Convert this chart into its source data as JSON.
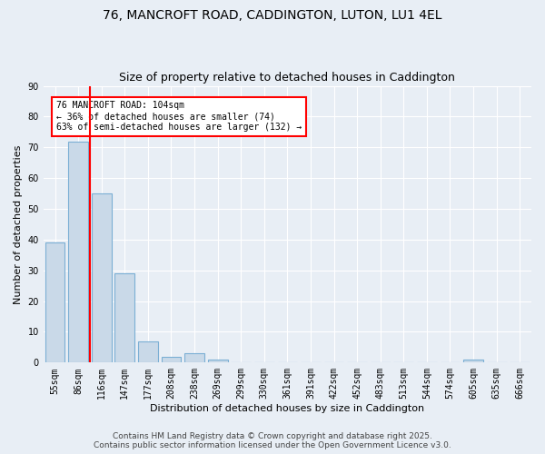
{
  "title1": "76, MANCROFT ROAD, CADDINGTON, LUTON, LU1 4EL",
  "title2": "Size of property relative to detached houses in Caddington",
  "xlabel": "Distribution of detached houses by size in Caddington",
  "ylabel": "Number of detached properties",
  "categories": [
    "55sqm",
    "86sqm",
    "116sqm",
    "147sqm",
    "177sqm",
    "208sqm",
    "238sqm",
    "269sqm",
    "299sqm",
    "330sqm",
    "361sqm",
    "391sqm",
    "422sqm",
    "452sqm",
    "483sqm",
    "513sqm",
    "544sqm",
    "574sqm",
    "605sqm",
    "635sqm",
    "666sqm"
  ],
  "values": [
    39,
    72,
    55,
    29,
    7,
    2,
    3,
    1,
    0,
    0,
    0,
    0,
    0,
    0,
    0,
    0,
    0,
    0,
    1,
    0,
    0
  ],
  "bar_color": "#c9d9e8",
  "bar_edge_color": "#7bafd4",
  "vline_x": 1.5,
  "vline_color": "red",
  "annotation_text": "76 MANCROFT ROAD: 104sqm\n← 36% of detached houses are smaller (74)\n63% of semi-detached houses are larger (132) →",
  "annotation_box_color": "white",
  "annotation_box_edge": "red",
  "ylim": [
    0,
    90
  ],
  "yticks": [
    0,
    10,
    20,
    30,
    40,
    50,
    60,
    70,
    80,
    90
  ],
  "footer": "Contains HM Land Registry data © Crown copyright and database right 2025.\nContains public sector information licensed under the Open Government Licence v3.0.",
  "bg_color": "#e8eef5",
  "plot_bg_color": "#e8eef5",
  "grid_color": "white",
  "title_fontsize": 10,
  "subtitle_fontsize": 9,
  "axis_label_fontsize": 8,
  "tick_fontsize": 7,
  "footer_fontsize": 6.5
}
